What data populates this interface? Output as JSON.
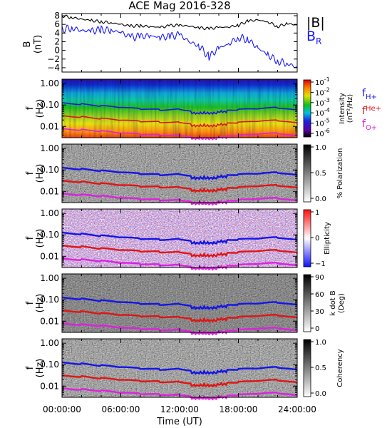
{
  "title": "ACE Mag 2016-328",
  "xaxis": {
    "label": "Time (UT)",
    "ticks": [
      "00:00:00",
      "06:00:00",
      "12:00:00",
      "18:00:00",
      "24:00:00"
    ],
    "range": [
      0,
      24
    ]
  },
  "colors": {
    "B_total": "#000000",
    "B_R": "#1a1aff",
    "f_H": "#1515e6",
    "f_He": "#e01515",
    "f_O": "#e020e0"
  },
  "panels": {
    "b_field": {
      "ylabel": "B",
      "yunit": "(nT)",
      "ylim": [
        -5,
        8.5
      ],
      "yticks": [
        "8",
        "6",
        "4",
        "2",
        "0",
        "−2",
        "−4"
      ],
      "legend": {
        "total": "|B|",
        "radial_main": "B",
        "radial_sub": "R"
      }
    },
    "freq_ticks": [
      "1.00",
      "0.10",
      "0.01"
    ],
    "freq_label": "f",
    "freq_unit": "(Hz)",
    "intensity": {
      "colorbar_label": "Intensity",
      "colorbar_unit": "(nT²/Hz)",
      "colorbar_ticks": [
        {
          "base": "10",
          "exp": "-1"
        },
        {
          "base": "10",
          "exp": "-2"
        },
        {
          "base": "10",
          "exp": "-3"
        },
        {
          "base": "10",
          "exp": "-4"
        },
        {
          "base": "10",
          "exp": "-5"
        },
        {
          "base": "10",
          "exp": "-6"
        }
      ],
      "legend": [
        {
          "main": "f",
          "sub": "H+"
        },
        {
          "main": "f",
          "sub": "He+"
        },
        {
          "main": "f",
          "sub": "O+"
        }
      ]
    },
    "polarization": {
      "colorbar_label": "% Polarization",
      "colorbar_ticks": [
        "1.0",
        "0.5",
        "0.0"
      ]
    },
    "ellipticity": {
      "colorbar_label": "Ellipticity",
      "colorbar_ticks": [
        "1",
        "0",
        "−1"
      ]
    },
    "kdotb": {
      "colorbar_label": "k dot B",
      "colorbar_unit": "(Deg)",
      "colorbar_ticks": [
        "90",
        "60",
        "30",
        "0"
      ]
    },
    "coherency": {
      "colorbar_label": "Coherency",
      "colorbar_ticks": [
        "1.0",
        "0.5",
        "0.0"
      ]
    }
  },
  "chart_data": [
    {
      "type": "line",
      "title": "ACE Mag 2016-328",
      "xlabel": "",
      "ylabel": "B (nT)",
      "ylim": [
        -5,
        8.5
      ],
      "xlim": [
        0,
        24
      ],
      "x": [
        0,
        1,
        2,
        3,
        4,
        5,
        6,
        7,
        8,
        9,
        10,
        11,
        12,
        13,
        14,
        15,
        16,
        17,
        18,
        19,
        20,
        21,
        22,
        23,
        24
      ],
      "series": [
        {
          "name": "|B|",
          "values": [
            8.0,
            7.6,
            7.2,
            6.9,
            6.6,
            6.4,
            6.0,
            5.6,
            5.7,
            5.5,
            5.3,
            5.7,
            5.8,
            5.6,
            5.2,
            5.0,
            5.3,
            5.4,
            5.8,
            6.8,
            7.0,
            6.6,
            5.5,
            6.2,
            5.8
          ]
        },
        {
          "name": "B_R",
          "values": [
            4.8,
            5.2,
            4.6,
            4.4,
            4.8,
            4.6,
            4.2,
            3.0,
            3.2,
            3.4,
            3.0,
            3.2,
            3.6,
            2.0,
            1.0,
            -1.5,
            0.5,
            1.5,
            3.0,
            2.5,
            0.5,
            -1.0,
            -2.5,
            -3.0,
            -4.0
          ]
        }
      ]
    },
    {
      "type": "heatmap",
      "title": "",
      "ylabel": "f (Hz)",
      "ylim": [
        0.003,
        1.6
      ],
      "xlim": [
        0,
        24
      ],
      "colorbar": "Intensity (nT^2/Hz)",
      "x": [
        0,
        2,
        4,
        6,
        8,
        10,
        12,
        14,
        16,
        18,
        20,
        22,
        24
      ],
      "series": [
        {
          "name": "f_H+",
          "values": [
            0.13,
            0.11,
            0.09,
            0.075,
            0.065,
            0.06,
            0.065,
            0.05,
            0.055,
            0.06,
            0.065,
            0.075,
            0.055
          ]
        },
        {
          "name": "f_He+",
          "values": [
            0.032,
            0.028,
            0.023,
            0.019,
            0.017,
            0.016,
            0.016,
            0.013,
            0.014,
            0.015,
            0.017,
            0.019,
            0.014
          ]
        },
        {
          "name": "f_O+",
          "values": [
            0.008,
            0.007,
            0.006,
            0.0048,
            0.0043,
            0.004,
            0.004,
            0.0033,
            0.0035,
            0.0038,
            0.0043,
            0.0048,
            0.0035
          ]
        }
      ]
    },
    {
      "type": "heatmap",
      "ylabel": "f (Hz)",
      "colorbar": "% Polarization"
    },
    {
      "type": "heatmap",
      "ylabel": "f (Hz)",
      "colorbar": "Ellipticity"
    },
    {
      "type": "heatmap",
      "ylabel": "f (Hz)",
      "colorbar": "k dot B (Deg)"
    },
    {
      "type": "heatmap",
      "ylabel": "f (Hz)",
      "colorbar": "Coherency"
    }
  ]
}
